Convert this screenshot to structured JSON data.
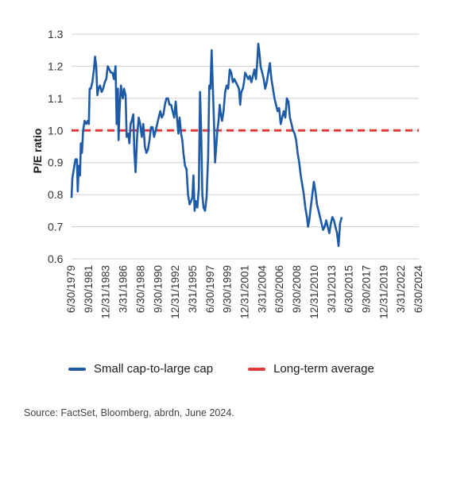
{
  "chart_data": {
    "type": "line",
    "ylabel": "P/E ratio",
    "xlabel": "",
    "ylim": [
      0.6,
      1.3
    ],
    "yticks": [
      1.3,
      1.2,
      1.1,
      1.0,
      0.9,
      0.8,
      0.7,
      0.6
    ],
    "xlim": [
      1979.5,
      2024.5
    ],
    "xtick_labels": [
      "6/30/1979",
      "9/30/1981",
      "12/31/1983",
      "3/31/1986",
      "6/30/1988",
      "9/30/1990",
      "12/31/1992",
      "3/31/1995",
      "6/30/1997",
      "9/30/1999",
      "12/31/2001",
      "3/31/2004",
      "6/30/2006",
      "9/30/2008",
      "12/31/2010",
      "3/31/2013",
      "6/30/2015",
      "9/30/2017",
      "12/31/2019",
      "3/31/2022",
      "6/30/2024"
    ],
    "grid": "horizontal",
    "legend_position": "bottom",
    "series": [
      {
        "name": "Small cap-to-large cap",
        "color": "#1f5aa6",
        "points": [
          [
            1979.5,
            0.79
          ],
          [
            1979.6,
            0.85
          ],
          [
            1979.8,
            0.88
          ],
          [
            1980.0,
            0.91
          ],
          [
            1980.2,
            0.91
          ],
          [
            1980.3,
            0.81
          ],
          [
            1980.45,
            0.89
          ],
          [
            1980.6,
            0.86
          ],
          [
            1980.7,
            0.96
          ],
          [
            1980.85,
            0.93
          ],
          [
            1981.0,
            1.0
          ],
          [
            1981.2,
            1.03
          ],
          [
            1981.4,
            1.02
          ],
          [
            1981.6,
            1.03
          ],
          [
            1981.75,
            1.02
          ],
          [
            1981.85,
            1.13
          ],
          [
            1982.0,
            1.13
          ],
          [
            1982.2,
            1.15
          ],
          [
            1982.4,
            1.19
          ],
          [
            1982.55,
            1.23
          ],
          [
            1982.7,
            1.2
          ],
          [
            1982.85,
            1.11
          ],
          [
            1983.0,
            1.13
          ],
          [
            1983.2,
            1.14
          ],
          [
            1983.4,
            1.12
          ],
          [
            1983.6,
            1.13
          ],
          [
            1983.8,
            1.15
          ],
          [
            1984.0,
            1.16
          ],
          [
            1984.2,
            1.2
          ],
          [
            1984.4,
            1.19
          ],
          [
            1984.6,
            1.18
          ],
          [
            1984.8,
            1.18
          ],
          [
            1985.0,
            1.16
          ],
          [
            1985.2,
            1.2
          ],
          [
            1985.35,
            1.02
          ],
          [
            1985.5,
            1.13
          ],
          [
            1985.6,
            0.97
          ],
          [
            1985.7,
            1.05
          ],
          [
            1985.8,
            1.1
          ],
          [
            1985.9,
            1.14
          ],
          [
            1986.0,
            1.12
          ],
          [
            1986.15,
            1.1
          ],
          [
            1986.3,
            1.13
          ],
          [
            1986.5,
            1.11
          ],
          [
            1986.65,
            0.98
          ],
          [
            1986.85,
            0.99
          ],
          [
            1987.0,
            0.96
          ],
          [
            1987.15,
            1.02
          ],
          [
            1987.3,
            1.03
          ],
          [
            1987.5,
            1.05
          ],
          [
            1987.65,
            0.93
          ],
          [
            1987.8,
            0.87
          ],
          [
            1988.0,
            0.98
          ],
          [
            1988.2,
            1.04
          ],
          [
            1988.4,
            1.02
          ],
          [
            1988.6,
            0.98
          ],
          [
            1988.8,
            1.02
          ],
          [
            1989.0,
            0.95
          ],
          [
            1989.2,
            0.93
          ],
          [
            1989.4,
            0.94
          ],
          [
            1989.6,
            0.97
          ],
          [
            1989.8,
            1.01
          ],
          [
            1990.0,
            1.01
          ],
          [
            1990.2,
            0.98
          ],
          [
            1990.4,
            1.0
          ],
          [
            1990.6,
            1.02
          ],
          [
            1990.8,
            1.04
          ],
          [
            1991.0,
            1.06
          ],
          [
            1991.2,
            1.04
          ],
          [
            1991.4,
            1.05
          ],
          [
            1991.6,
            1.08
          ],
          [
            1991.8,
            1.1
          ],
          [
            1992.0,
            1.1
          ],
          [
            1992.2,
            1.08
          ],
          [
            1992.4,
            1.08
          ],
          [
            1992.6,
            1.06
          ],
          [
            1992.8,
            1.04
          ],
          [
            1993.0,
            1.09
          ],
          [
            1993.2,
            1.03
          ],
          [
            1993.35,
            0.99
          ],
          [
            1993.5,
            1.04
          ],
          [
            1993.7,
            0.99
          ],
          [
            1993.85,
            0.97
          ],
          [
            1994.0,
            0.93
          ],
          [
            1994.2,
            0.89
          ],
          [
            1994.4,
            0.88
          ],
          [
            1994.6,
            0.8
          ],
          [
            1994.8,
            0.77
          ],
          [
            1995.0,
            0.78
          ],
          [
            1995.15,
            0.79
          ],
          [
            1995.3,
            0.86
          ],
          [
            1995.45,
            0.75
          ],
          [
            1995.6,
            0.78
          ],
          [
            1995.8,
            0.76
          ],
          [
            1996.0,
            0.82
          ],
          [
            1996.15,
            1.12
          ],
          [
            1996.3,
            1.0
          ],
          [
            1996.45,
            0.8
          ],
          [
            1996.6,
            0.76
          ],
          [
            1996.8,
            0.75
          ],
          [
            1997.0,
            0.79
          ],
          [
            1997.2,
            0.92
          ],
          [
            1997.35,
            1.14
          ],
          [
            1997.5,
            1.13
          ],
          [
            1997.65,
            1.25
          ],
          [
            1997.8,
            1.14
          ],
          [
            1997.95,
            1.03
          ],
          [
            1998.1,
            0.9
          ],
          [
            1998.25,
            0.95
          ],
          [
            1998.4,
            1.0
          ],
          [
            1998.55,
            1.03
          ],
          [
            1998.7,
            1.08
          ],
          [
            1998.85,
            1.05
          ],
          [
            1999.0,
            1.03
          ],
          [
            1999.2,
            1.06
          ],
          [
            1999.4,
            1.12
          ],
          [
            1999.6,
            1.14
          ],
          [
            1999.8,
            1.13
          ],
          [
            2000.0,
            1.19
          ],
          [
            2000.2,
            1.18
          ],
          [
            2000.4,
            1.15
          ],
          [
            2000.6,
            1.16
          ],
          [
            2000.8,
            1.15
          ],
          [
            2001.0,
            1.14
          ],
          [
            2001.2,
            1.13
          ],
          [
            2001.35,
            1.08
          ],
          [
            2001.5,
            1.12
          ],
          [
            2001.7,
            1.13
          ],
          [
            2001.85,
            1.15
          ],
          [
            2002.0,
            1.18
          ],
          [
            2002.2,
            1.17
          ],
          [
            2002.4,
            1.16
          ],
          [
            2002.6,
            1.17
          ],
          [
            2002.8,
            1.15
          ],
          [
            2003.0,
            1.17
          ],
          [
            2003.2,
            1.19
          ],
          [
            2003.4,
            1.16
          ],
          [
            2003.55,
            1.21
          ],
          [
            2003.7,
            1.27
          ],
          [
            2003.85,
            1.24
          ],
          [
            2004.0,
            1.2
          ],
          [
            2004.2,
            1.18
          ],
          [
            2004.4,
            1.16
          ],
          [
            2004.6,
            1.13
          ],
          [
            2004.8,
            1.15
          ],
          [
            2005.0,
            1.18
          ],
          [
            2005.2,
            1.21
          ],
          [
            2005.4,
            1.16
          ],
          [
            2005.6,
            1.13
          ],
          [
            2005.8,
            1.1
          ],
          [
            2006.0,
            1.08
          ],
          [
            2006.2,
            1.06
          ],
          [
            2006.4,
            1.07
          ],
          [
            2006.6,
            1.02
          ],
          [
            2006.8,
            1.04
          ],
          [
            2007.0,
            1.06
          ],
          [
            2007.2,
            1.04
          ],
          [
            2007.4,
            1.1
          ],
          [
            2007.6,
            1.09
          ],
          [
            2007.8,
            1.04
          ],
          [
            2008.0,
            1.02
          ],
          [
            2008.2,
            1.0
          ],
          [
            2008.4,
            0.99
          ],
          [
            2008.6,
            0.97
          ],
          [
            2008.8,
            0.93
          ],
          [
            2009.0,
            0.9
          ],
          [
            2009.2,
            0.86
          ],
          [
            2009.4,
            0.83
          ],
          [
            2009.6,
            0.8
          ],
          [
            2009.8,
            0.76
          ],
          [
            2010.0,
            0.73
          ],
          [
            2010.15,
            0.7
          ],
          [
            2010.3,
            0.72
          ],
          [
            2010.5,
            0.76
          ],
          [
            2010.7,
            0.8
          ],
          [
            2010.9,
            0.84
          ],
          [
            2011.1,
            0.81
          ],
          [
            2011.3,
            0.77
          ],
          [
            2011.5,
            0.75
          ],
          [
            2011.7,
            0.73
          ],
          [
            2011.9,
            0.71
          ],
          [
            2012.1,
            0.69
          ],
          [
            2012.3,
            0.7
          ],
          [
            2012.5,
            0.72
          ],
          [
            2012.7,
            0.7
          ],
          [
            2012.9,
            0.68
          ],
          [
            2013.1,
            0.71
          ],
          [
            2013.3,
            0.73
          ],
          [
            2013.5,
            0.72
          ],
          [
            2013.7,
            0.7
          ],
          [
            2013.9,
            0.68
          ],
          [
            2014.1,
            0.64
          ],
          [
            2014.3,
            0.71
          ],
          [
            2014.5,
            0.73
          ]
        ]
      },
      {
        "name": "Long-term average",
        "color": "#e03a3a",
        "value": 1.0
      }
    ]
  },
  "legend": {
    "series1": "Small cap-to-large cap",
    "series2": "Long-term average"
  },
  "source": "Source: FactSet, Bloomberg, abrdn, June 2024."
}
